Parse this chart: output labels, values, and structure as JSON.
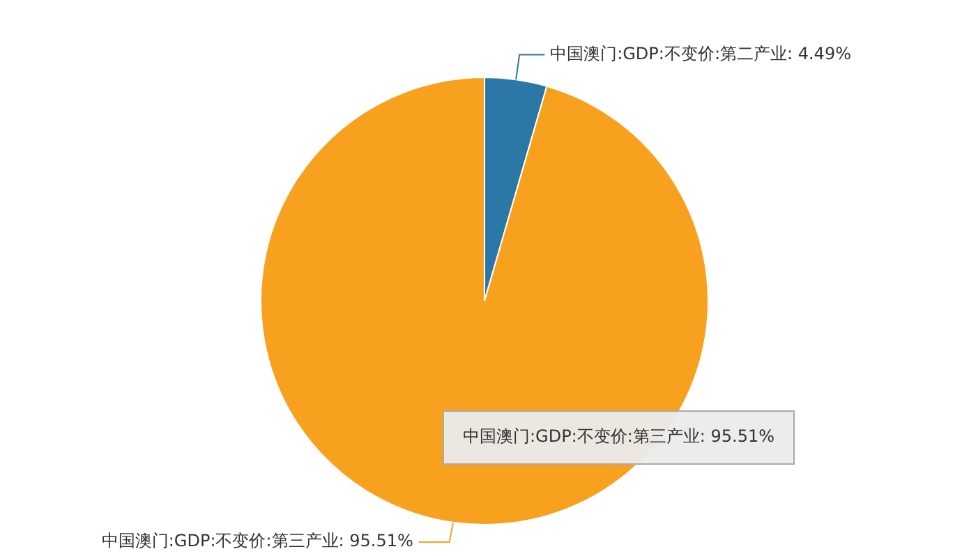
{
  "chart_data": {
    "type": "pie",
    "categories": [
      "中国澳门:GDP:不变价:第二产业",
      "中国澳门:GDP:不变价:第三产业"
    ],
    "values": [
      4.49,
      95.51
    ],
    "colors": [
      "#2b78a6",
      "#f8a11e"
    ],
    "value_labels": [
      "4.49%",
      "95.51%"
    ],
    "legend": false,
    "annotations": [
      "中国澳门:GDP:不变价:第三产业: 95.51%"
    ]
  }
}
